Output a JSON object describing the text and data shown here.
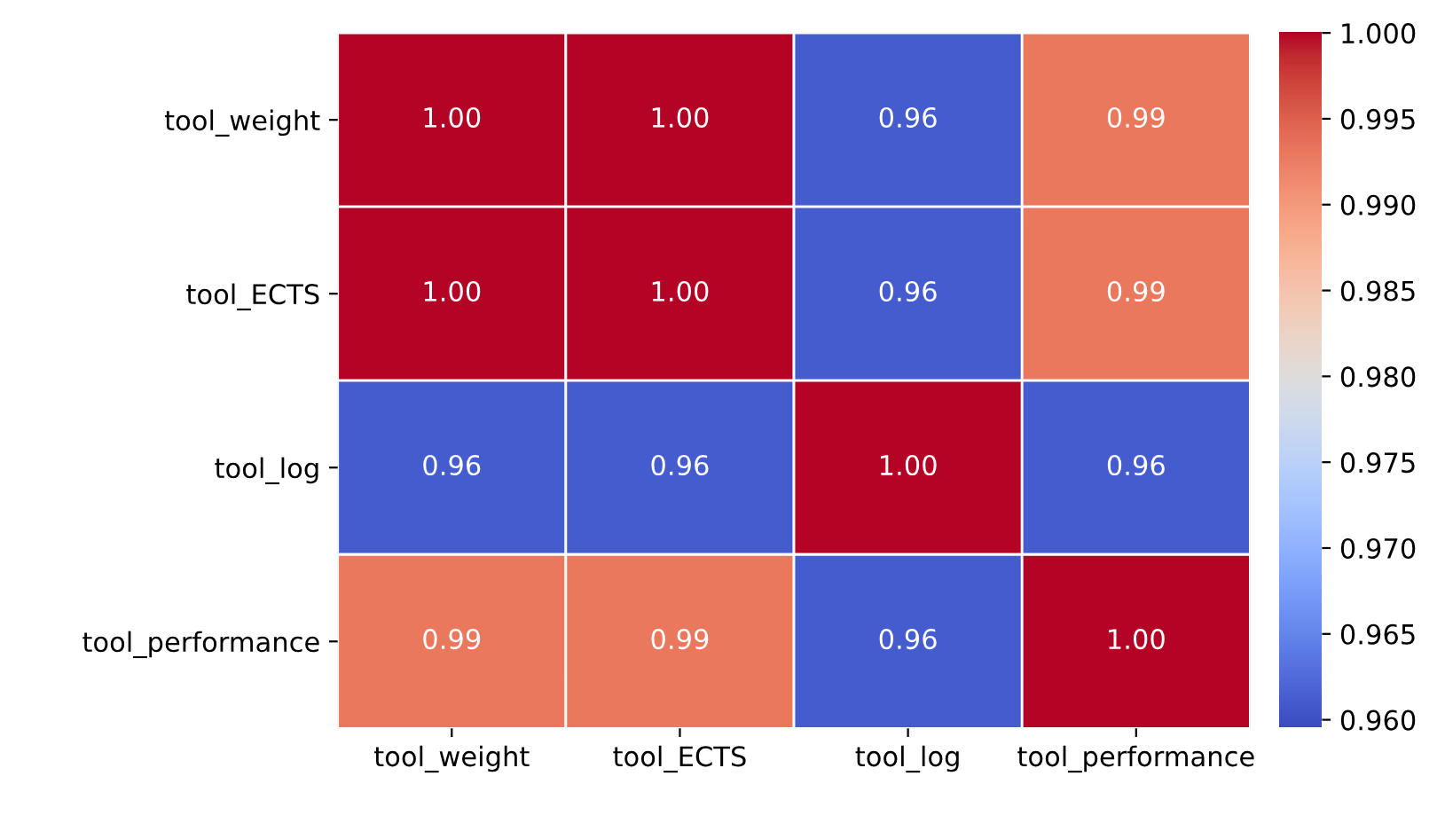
{
  "chart_data": {
    "type": "heatmap",
    "categories": [
      "tool_weight",
      "tool_ECTS",
      "tool_log",
      "tool_performance"
    ],
    "y_categories": [
      "tool_weight",
      "tool_ECTS",
      "tool_log",
      "tool_performance"
    ],
    "cells": [
      [
        1.0,
        1.0,
        0.961,
        0.993
      ],
      [
        1.0,
        1.0,
        0.961,
        0.993
      ],
      [
        0.961,
        0.961,
        1.0,
        0.961
      ],
      [
        0.993,
        0.993,
        0.961,
        1.0
      ]
    ],
    "cell_labels": [
      [
        "1.00",
        "1.00",
        "0.96",
        "0.99"
      ],
      [
        "1.00",
        "1.00",
        "0.96",
        "0.99"
      ],
      [
        "0.96",
        "0.96",
        "1.00",
        "0.96"
      ],
      [
        "0.99",
        "0.99",
        "0.96",
        "1.00"
      ]
    ],
    "data_labels": true,
    "clim": [
      0.9595,
      1.0
    ],
    "cticks": [
      {
        "value": 0.96,
        "label": "0.960"
      },
      {
        "value": 0.965,
        "label": "0.965"
      },
      {
        "value": 0.97,
        "label": "0.970"
      },
      {
        "value": 0.975,
        "label": "0.975"
      },
      {
        "value": 0.98,
        "label": "0.980"
      },
      {
        "value": 0.985,
        "label": "0.985"
      },
      {
        "value": 0.99,
        "label": "0.990"
      },
      {
        "value": 0.995,
        "label": "0.995"
      },
      {
        "value": 1.0,
        "label": "1.000"
      }
    ]
  }
}
